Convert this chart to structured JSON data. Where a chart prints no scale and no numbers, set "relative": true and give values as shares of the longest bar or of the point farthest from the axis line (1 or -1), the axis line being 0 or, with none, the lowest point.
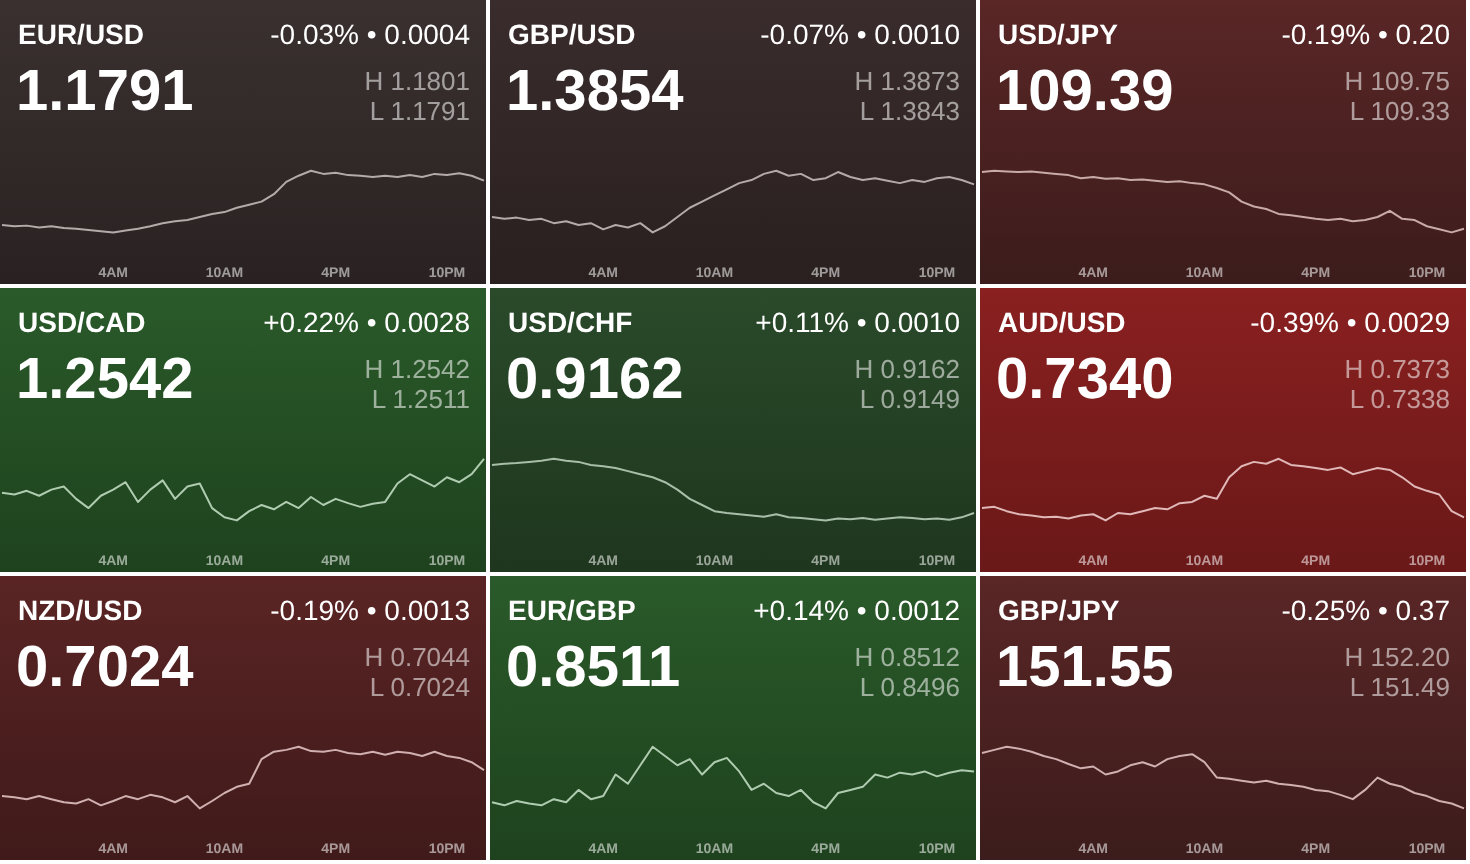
{
  "chart_data": [
    {
      "type": "line",
      "title": "EUR/USD",
      "subtitle": "1.1791",
      "annotations": [
        "-0.03% • 0.0004",
        "H 1.1801",
        "L 1.1791"
      ],
      "relative": true,
      "legend": false,
      "grid": false,
      "tick_labels": "x",
      "marker": "none",
      "categories": [
        null,
        null,
        null,
        null,
        null,
        null,
        null,
        null,
        null,
        "4AM",
        null,
        null,
        null,
        null,
        null,
        null,
        null,
        null,
        "10AM",
        null,
        null,
        null,
        null,
        null,
        null,
        null,
        null,
        "4PM",
        null,
        null,
        null,
        null,
        null,
        null,
        null,
        null,
        "10PM",
        null,
        null,
        null
      ],
      "series": [
        {
          "color": "#b4aaaa",
          "values": [
            0.12,
            0.1,
            0.11,
            0.08,
            0.1,
            0.07,
            0.06,
            0.04,
            0.02,
            0,
            0.03,
            0.06,
            0.1,
            0.15,
            0.18,
            0.2,
            0.25,
            0.3,
            0.33,
            0.4,
            0.45,
            0.5,
            0.62,
            0.82,
            0.92,
            1,
            0.95,
            0.97,
            0.93,
            0.92,
            0.9,
            0.92,
            0.9,
            0.93,
            0.9,
            0.95,
            0.93,
            0.96,
            0.92,
            0.84
          ]
        }
      ]
    },
    {
      "type": "line",
      "title": "GBP/USD",
      "subtitle": "1.3854",
      "annotations": [
        "-0.07% • 0.0010",
        "H 1.3873",
        "L 1.3843"
      ],
      "relative": true,
      "legend": false,
      "grid": false,
      "tick_labels": "x",
      "marker": "none",
      "categories": [
        null,
        null,
        null,
        null,
        null,
        null,
        null,
        null,
        null,
        "4AM",
        null,
        null,
        null,
        null,
        null,
        null,
        null,
        null,
        "10AM",
        null,
        null,
        null,
        null,
        null,
        null,
        null,
        null,
        "4PM",
        null,
        null,
        null,
        null,
        null,
        null,
        null,
        null,
        "10PM",
        null,
        null,
        null
      ],
      "series": [
        {
          "color": "#b4aaaa",
          "values": [
            0.25,
            0.22,
            0.24,
            0.2,
            0.22,
            0.15,
            0.18,
            0.12,
            0.15,
            0.05,
            0.12,
            0.08,
            0.15,
            0,
            0.1,
            0.25,
            0.4,
            0.5,
            0.6,
            0.7,
            0.8,
            0.85,
            0.95,
            1,
            0.92,
            0.95,
            0.85,
            0.88,
            0.98,
            0.9,
            0.85,
            0.88,
            0.84,
            0.8,
            0.85,
            0.82,
            0.88,
            0.9,
            0.85,
            0.78
          ]
        }
      ]
    },
    {
      "type": "line",
      "title": "USD/JPY",
      "subtitle": "109.39",
      "annotations": [
        "-0.19% • 0.20",
        "H 109.75",
        "L 109.33"
      ],
      "relative": true,
      "legend": false,
      "grid": false,
      "tick_labels": "x",
      "marker": "none",
      "categories": [
        null,
        null,
        null,
        null,
        null,
        null,
        null,
        null,
        null,
        "4AM",
        null,
        null,
        null,
        null,
        null,
        null,
        null,
        null,
        "10AM",
        null,
        null,
        null,
        null,
        null,
        null,
        null,
        null,
        "4PM",
        null,
        null,
        null,
        null,
        null,
        null,
        null,
        null,
        "10PM",
        null,
        null,
        null
      ],
      "series": [
        {
          "color": "#c8aaa8",
          "values": [
            0.98,
            1,
            0.99,
            0.98,
            0.99,
            0.97,
            0.95,
            0.93,
            0.88,
            0.9,
            0.87,
            0.88,
            0.85,
            0.86,
            0.84,
            0.82,
            0.83,
            0.8,
            0.78,
            0.72,
            0.65,
            0.5,
            0.42,
            0.38,
            0.3,
            0.28,
            0.25,
            0.22,
            0.2,
            0.22,
            0.18,
            0.2,
            0.25,
            0.35,
            0.22,
            0.2,
            0.1,
            0.05,
            0,
            0.06
          ]
        }
      ]
    },
    {
      "type": "line",
      "title": "USD/CAD",
      "subtitle": "1.2542",
      "annotations": [
        "+0.22% • 0.0028",
        "H 1.2542",
        "L 1.2511"
      ],
      "relative": true,
      "legend": false,
      "grid": false,
      "tick_labels": "x",
      "marker": "none",
      "categories": [
        null,
        null,
        null,
        null,
        null,
        null,
        null,
        null,
        null,
        "4AM",
        null,
        null,
        null,
        null,
        null,
        null,
        null,
        null,
        "10AM",
        null,
        null,
        null,
        null,
        null,
        null,
        null,
        null,
        "4PM",
        null,
        null,
        null,
        null,
        null,
        null,
        null,
        null,
        "10PM",
        null,
        null,
        null
      ],
      "series": [
        {
          "color": "#b0ccb0",
          "values": [
            0.45,
            0.42,
            0.48,
            0.4,
            0.5,
            0.55,
            0.35,
            0.2,
            0.4,
            0.5,
            0.62,
            0.3,
            0.5,
            0.65,
            0.35,
            0.55,
            0.6,
            0.2,
            0.05,
            0,
            0.15,
            0.25,
            0.18,
            0.3,
            0.2,
            0.38,
            0.25,
            0.35,
            0.28,
            0.22,
            0.27,
            0.3,
            0.6,
            0.75,
            0.65,
            0.55,
            0.7,
            0.62,
            0.75,
            1
          ]
        }
      ]
    },
    {
      "type": "line",
      "title": "USD/CHF",
      "subtitle": "0.9162",
      "annotations": [
        "+0.11% • 0.0010",
        "H 0.9162",
        "L 0.9149"
      ],
      "relative": true,
      "legend": false,
      "grid": false,
      "tick_labels": "x",
      "marker": "none",
      "categories": [
        null,
        null,
        null,
        null,
        null,
        null,
        null,
        null,
        null,
        "4AM",
        null,
        null,
        null,
        null,
        null,
        null,
        null,
        null,
        "10AM",
        null,
        null,
        null,
        null,
        null,
        null,
        null,
        null,
        "4PM",
        null,
        null,
        null,
        null,
        null,
        null,
        null,
        null,
        "10PM",
        null,
        null,
        null
      ],
      "series": [
        {
          "color": "#a8bea8",
          "values": [
            0.9,
            0.92,
            0.93,
            0.95,
            0.97,
            1,
            0.97,
            0.95,
            0.9,
            0.88,
            0.85,
            0.8,
            0.75,
            0.7,
            0.62,
            0.5,
            0.35,
            0.25,
            0.15,
            0.12,
            0.1,
            0.08,
            0.06,
            0.1,
            0.05,
            0.04,
            0.02,
            0,
            0.03,
            0.02,
            0.04,
            0.01,
            0.03,
            0.05,
            0.04,
            0.02,
            0.03,
            0.01,
            0.05,
            0.12
          ]
        }
      ]
    },
    {
      "type": "line",
      "title": "AUD/USD",
      "subtitle": "0.7340",
      "annotations": [
        "-0.39% • 0.0029",
        "H 0.7373",
        "L 0.7338"
      ],
      "relative": true,
      "legend": false,
      "grid": false,
      "tick_labels": "x",
      "marker": "none",
      "categories": [
        null,
        null,
        null,
        null,
        null,
        null,
        null,
        null,
        null,
        "4AM",
        null,
        null,
        null,
        null,
        null,
        null,
        null,
        null,
        "10AM",
        null,
        null,
        null,
        null,
        null,
        null,
        null,
        null,
        "4PM",
        null,
        null,
        null,
        null,
        null,
        null,
        null,
        null,
        "10PM",
        null,
        null,
        null
      ],
      "series": [
        {
          "color": "#e0b8b8",
          "values": [
            0.2,
            0.22,
            0.15,
            0.1,
            0.08,
            0.05,
            0.06,
            0.03,
            0.08,
            0.1,
            0,
            0.12,
            0.1,
            0.15,
            0.2,
            0.18,
            0.28,
            0.3,
            0.4,
            0.35,
            0.7,
            0.88,
            0.95,
            0.92,
            1,
            0.9,
            0.88,
            0.85,
            0.82,
            0.86,
            0.75,
            0.8,
            0.85,
            0.82,
            0.7,
            0.55,
            0.48,
            0.42,
            0.15,
            0.05
          ]
        }
      ]
    },
    {
      "type": "line",
      "title": "NZD/USD",
      "subtitle": "0.7024",
      "annotations": [
        "-0.19% • 0.0013",
        "H 0.7044",
        "L 0.7024"
      ],
      "relative": true,
      "legend": false,
      "grid": false,
      "tick_labels": "x",
      "marker": "none",
      "categories": [
        null,
        null,
        null,
        null,
        null,
        null,
        null,
        null,
        null,
        "4AM",
        null,
        null,
        null,
        null,
        null,
        null,
        null,
        null,
        "10AM",
        null,
        null,
        null,
        null,
        null,
        null,
        null,
        null,
        "4PM",
        null,
        null,
        null,
        null,
        null,
        null,
        null,
        null,
        "10PM",
        null,
        null,
        null
      ],
      "series": [
        {
          "color": "#d0b0b0",
          "values": [
            0.2,
            0.18,
            0.15,
            0.2,
            0.15,
            0.1,
            0.08,
            0.15,
            0.05,
            0.12,
            0.2,
            0.15,
            0.22,
            0.18,
            0.1,
            0.2,
            0,
            0.12,
            0.25,
            0.35,
            0.4,
            0.8,
            0.92,
            0.95,
            1,
            0.93,
            0.92,
            0.95,
            0.9,
            0.88,
            0.92,
            0.87,
            0.92,
            0.9,
            0.85,
            0.92,
            0.85,
            0.82,
            0.75,
            0.62
          ]
        }
      ]
    },
    {
      "type": "line",
      "title": "EUR/GBP",
      "subtitle": "0.8511",
      "annotations": [
        "+0.14% • 0.0012",
        "H 0.8512",
        "L 0.8496"
      ],
      "relative": true,
      "legend": false,
      "grid": false,
      "tick_labels": "x",
      "marker": "none",
      "categories": [
        null,
        null,
        null,
        null,
        null,
        null,
        null,
        null,
        null,
        "4AM",
        null,
        null,
        null,
        null,
        null,
        null,
        null,
        null,
        "10AM",
        null,
        null,
        null,
        null,
        null,
        null,
        null,
        null,
        "4PM",
        null,
        null,
        null,
        null,
        null,
        null,
        null,
        null,
        "10PM",
        null,
        null,
        null
      ],
      "series": [
        {
          "color": "#b0ccb0",
          "values": [
            0.1,
            0.05,
            0.12,
            0.08,
            0.05,
            0.15,
            0.1,
            0.3,
            0.15,
            0.2,
            0.55,
            0.4,
            0.7,
            1,
            0.85,
            0.7,
            0.8,
            0.55,
            0.75,
            0.82,
            0.6,
            0.3,
            0.4,
            0.25,
            0.2,
            0.3,
            0.1,
            0,
            0.25,
            0.3,
            0.35,
            0.55,
            0.5,
            0.58,
            0.55,
            0.6,
            0.52,
            0.58,
            0.62,
            0.6
          ]
        }
      ]
    },
    {
      "type": "line",
      "title": "GBP/JPY",
      "subtitle": "151.55",
      "annotations": [
        "-0.25% • 0.37",
        "H 152.20",
        "L 151.49"
      ],
      "relative": true,
      "legend": false,
      "grid": false,
      "tick_labels": "x",
      "marker": "none",
      "categories": [
        null,
        null,
        null,
        null,
        null,
        null,
        null,
        null,
        null,
        "4AM",
        null,
        null,
        null,
        null,
        null,
        null,
        null,
        null,
        "10AM",
        null,
        null,
        null,
        null,
        null,
        null,
        null,
        null,
        "4PM",
        null,
        null,
        null,
        null,
        null,
        null,
        null,
        null,
        "10PM",
        null,
        null,
        null
      ],
      "series": [
        {
          "color": "#d0b0b0",
          "values": [
            0.9,
            0.95,
            1,
            0.97,
            0.92,
            0.85,
            0.8,
            0.72,
            0.65,
            0.68,
            0.55,
            0.6,
            0.7,
            0.75,
            0.68,
            0.8,
            0.85,
            0.88,
            0.75,
            0.5,
            0.48,
            0.45,
            0.42,
            0.45,
            0.4,
            0.38,
            0.35,
            0.3,
            0.28,
            0.22,
            0.15,
            0.3,
            0.5,
            0.4,
            0.35,
            0.25,
            0.2,
            0.12,
            0.08,
            0
          ]
        }
      ]
    }
  ]
}
